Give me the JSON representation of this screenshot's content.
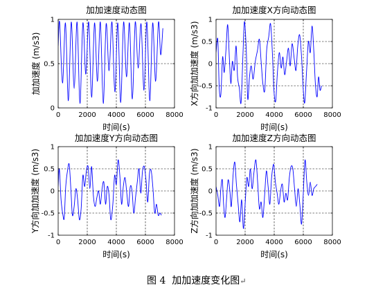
{
  "figure": {
    "caption": "图 4  加加速度变化图",
    "paragraph_mark": "↵"
  },
  "chart_data": [
    {
      "type": "line",
      "title": "加加速度动态图",
      "xlabel": "时间(s)",
      "ylabel": "加加速度 (m/s3)",
      "xlim": [
        0,
        8000
      ],
      "ylim": [
        0,
        1
      ],
      "xticks": [
        0,
        2000,
        4000,
        6000,
        8000
      ],
      "yticks": [
        0,
        0.5,
        1
      ],
      "grid": true,
      "line_color": "#0000ff",
      "series": [
        {
          "x": [
            0,
            100,
            300,
            500,
            700,
            900,
            1100,
            1300,
            1500,
            1700,
            1900,
            2100,
            2300,
            2500,
            2700,
            2900,
            3100,
            3300,
            3500,
            3700,
            3900,
            4100,
            4300,
            4500,
            4700,
            4900,
            5100,
            5300,
            5500,
            5700,
            5900,
            6100,
            6300,
            6500,
            6700,
            6900,
            7050,
            7200
          ],
          "y": [
            0.7,
            0.97,
            0.28,
            0.96,
            0.08,
            0.97,
            0.22,
            0.97,
            0.05,
            0.96,
            0.38,
            0.97,
            0.12,
            0.96,
            0.3,
            0.97,
            0.05,
            0.95,
            0.42,
            0.97,
            0.18,
            0.96,
            0.06,
            0.97,
            0.35,
            0.96,
            0.1,
            0.97,
            0.45,
            0.95,
            0.2,
            0.97,
            0.08,
            0.96,
            0.3,
            0.97,
            0.6,
            0.9
          ]
        }
      ]
    },
    {
      "type": "line",
      "title": "加加速度X方向动态图",
      "xlabel": "时间(s)",
      "ylabel": "X方向加加速度 (m/s3)",
      "xlim": [
        0,
        8000
      ],
      "ylim": [
        -1,
        1
      ],
      "xticks": [
        0,
        2000,
        4000,
        6000,
        8000
      ],
      "yticks": [
        -1,
        -0.5,
        0,
        0.5,
        1
      ],
      "grid": true,
      "line_color": "#0000ff",
      "series": [
        {
          "x": [
            0,
            120,
            220,
            330,
            450,
            560,
            680,
            800,
            920,
            1020,
            1120,
            1250,
            1380,
            1480,
            1600,
            1720,
            1850,
            1950,
            2080,
            2180,
            2300,
            2420,
            2550,
            2700,
            2850,
            2980,
            3100,
            3220,
            3350,
            3480,
            3620,
            3750,
            3880,
            3980,
            4100,
            4220,
            4350,
            4480,
            4600,
            4720,
            4850,
            4980,
            5100,
            5230,
            5380,
            5500,
            5620,
            5750,
            5880,
            6000,
            6100,
            6220,
            6350,
            6480,
            6600,
            6720,
            6830,
            6950,
            7050,
            7150,
            7250
          ],
          "y": [
            0.25,
            0.55,
            -0.55,
            -0.7,
            0.15,
            -0.2,
            0.3,
            0.88,
            0.1,
            -0.45,
            0.05,
            -0.15,
            0.4,
            -0.3,
            -0.55,
            -0.88,
            0.2,
            0.95,
            0.3,
            -0.8,
            -0.3,
            -0.05,
            -0.35,
            0.05,
            0.3,
            0.55,
            0.05,
            -0.45,
            -0.6,
            0.3,
            0.6,
            0.9,
            0.2,
            -0.6,
            -0.85,
            -0.2,
            0.25,
            -0.1,
            0.15,
            -0.25,
            0.05,
            0.35,
            -0.05,
            0.45,
            0.1,
            -0.15,
            0.4,
            0.65,
            0.15,
            -0.6,
            -0.88,
            -0.2,
            0.5,
            0.25,
            0.85,
            0.3,
            -0.45,
            -0.75,
            -0.3,
            -0.6,
            -0.5
          ]
        }
      ]
    },
    {
      "type": "line",
      "title": "加加速度Y方向动态图",
      "xlabel": "时间(s)",
      "ylabel": "Y方向加加速度 (m/s3)",
      "xlim": [
        0,
        8000
      ],
      "ylim": [
        -1,
        1
      ],
      "xticks": [
        0,
        2000,
        4000,
        6000,
        8000
      ],
      "yticks": [
        -1,
        -0.5,
        0,
        0.5,
        1
      ],
      "grid": true,
      "line_color": "#0000ff",
      "series": [
        {
          "x": [
            0,
            80,
            200,
            330,
            420,
            520,
            640,
            760,
            880,
            980,
            1100,
            1220,
            1340,
            1460,
            1580,
            1700,
            1820,
            1940,
            2060,
            2180,
            2300,
            2420,
            2540,
            2660,
            2780,
            2900,
            3020,
            3140,
            3260,
            3380,
            3500,
            3620,
            3760,
            3880,
            4000,
            4120,
            4240,
            4360,
            4480,
            4600,
            4720,
            4840,
            4960,
            5080,
            5200,
            5320,
            5440,
            5560,
            5680,
            5800,
            5920,
            6040,
            6160,
            6280,
            6400,
            6520,
            6640,
            6760,
            6880,
            7000,
            7100
          ],
          "y": [
            0.1,
            0.5,
            -0.2,
            -0.55,
            -0.6,
            0.1,
            0.45,
            0.6,
            0.0,
            -0.55,
            -0.35,
            0.05,
            -0.2,
            -0.65,
            -0.4,
            0.35,
            0.1,
            0.45,
            0.55,
            0.05,
            0.55,
            -0.1,
            -0.35,
            -0.15,
            0.0,
            -0.3,
            0.05,
            0.2,
            -0.3,
            0.1,
            -0.1,
            -0.65,
            -0.3,
            0.35,
            0.15,
            0.7,
            0.35,
            -0.3,
            0.1,
            0.3,
            -0.05,
            -0.35,
            0.1,
            0.0,
            -0.5,
            -0.15,
            0.2,
            0.5,
            -0.05,
            0.45,
            0.55,
            0.25,
            -0.25,
            0.4,
            0.45,
            0.05,
            -0.5,
            -0.3,
            -0.55,
            -0.5,
            -0.55
          ]
        }
      ]
    },
    {
      "type": "line",
      "title": "加加速度Z方向动态图",
      "xlabel": "时间(s)",
      "ylabel": "Z方向加加速度 (m/s3)",
      "xlim": [
        0,
        8000
      ],
      "ylim": [
        -1,
        1
      ],
      "xticks": [
        0,
        2000,
        4000,
        6000,
        8000
      ],
      "yticks": [
        -1,
        -0.5,
        0,
        0.5,
        1
      ],
      "grid": true,
      "line_color": "#0000ff",
      "series": [
        {
          "x": [
            0,
            120,
            240,
            330,
            430,
            520,
            620,
            720,
            830,
            950,
            1050,
            1170,
            1290,
            1400,
            1520,
            1640,
            1760,
            1880,
            2000,
            2120,
            2240,
            2360,
            2480,
            2600,
            2740,
            2860,
            2980,
            3100,
            3220,
            3340,
            3460,
            3580,
            3700,
            3820,
            3960,
            4080,
            4200,
            4320,
            4440,
            4560,
            4680,
            4800,
            4920,
            5040,
            5160,
            5280,
            5400,
            5520,
            5640,
            5760,
            5880,
            6000,
            6120,
            6240,
            6360,
            6480,
            6600,
            6720,
            6840,
            6960
          ],
          "y": [
            0.1,
            -0.1,
            -0.35,
            0.05,
            0.25,
            -0.3,
            -0.6,
            -0.2,
            0.25,
            0.0,
            -0.35,
            0.35,
            0.65,
            0.15,
            -0.3,
            -0.7,
            -0.2,
            -0.85,
            -0.3,
            0.3,
            0.1,
            0.5,
            0.05,
            0.4,
            0.7,
            0.2,
            -0.4,
            -0.25,
            -0.6,
            -0.1,
            0.45,
            0.1,
            -0.3,
            0.3,
            0.6,
            0.2,
            -0.05,
            -0.3,
            0.0,
            0.15,
            -0.25,
            -0.05,
            -0.2,
            0.3,
            0.55,
            0.5,
            0.05,
            -0.35,
            0.05,
            -0.3,
            -0.75,
            -0.05,
            0.7,
            0.2,
            -0.1,
            0.2,
            -0.1,
            0.05,
            0.1,
            0.15
          ]
        }
      ]
    }
  ]
}
